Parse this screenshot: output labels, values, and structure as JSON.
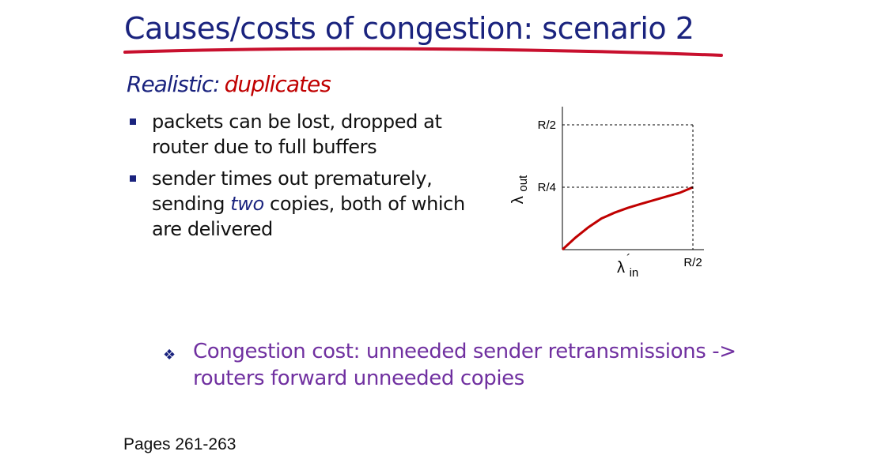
{
  "slide": {
    "title": "Causes/costs of congestion: scenario 2",
    "subtitle_prefix": "Realistic:",
    "subtitle_emph": "duplicates",
    "bullet1": "packets can be lost, dropped at router due  to full buffers",
    "bullet2_pre": "sender times out prematurely, sending ",
    "bullet2_emph": "two",
    "bullet2_post": " copies, both of which are delivered",
    "congestion_note": "Congestion cost: unneeded sender retransmissions -> routers forward unneeded copies",
    "pages": "Pages 261-263"
  },
  "colors": {
    "title": "#1a237e",
    "emphasis_red": "#c00000",
    "note_purple": "#7030a0",
    "curve": "#c00000"
  },
  "chart_data": {
    "type": "line",
    "xlabel": "λin´",
    "ylabel": "λout",
    "x_ticks": [
      "R/2"
    ],
    "y_ticks": [
      "R/2",
      "R/4"
    ],
    "xlim": [
      0,
      0.5
    ],
    "ylim": [
      0,
      0.55
    ],
    "series": [
      {
        "x": [
          0,
          0.05,
          0.1,
          0.15,
          0.2,
          0.25,
          0.3,
          0.35,
          0.4,
          0.45,
          0.5
        ],
        "y": [
          0,
          0.048,
          0.09,
          0.125,
          0.148,
          0.167,
          0.183,
          0.198,
          0.213,
          0.228,
          0.25
        ]
      }
    ]
  }
}
